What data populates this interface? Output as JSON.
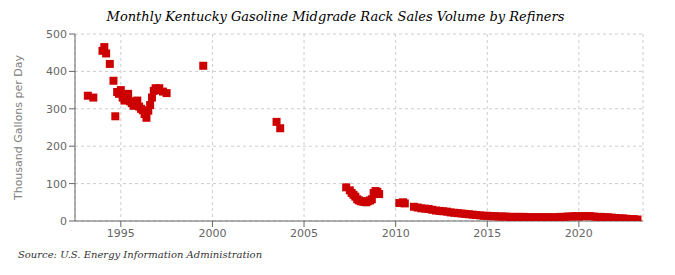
{
  "chart_data": {
    "type": "scatter",
    "title": "Monthly Kentucky Gasoline Midgrade Rack Sales Volume by Refiners",
    "ylabel": "Thousand Gallons per Day",
    "source": "Source: U.S. Energy Information Administration",
    "color": "#cc0000",
    "marker": "square",
    "grid": true,
    "xlim": [
      1992.5,
      2023.5
    ],
    "xticks": [
      1995,
      2000,
      2005,
      2010,
      2015,
      2020
    ],
    "ylim": [
      0,
      500
    ],
    "yticks": [
      0,
      100,
      200,
      300,
      400,
      500
    ],
    "x": [
      1993.2,
      1993.5,
      1994.0,
      1994.1,
      1994.2,
      1994.4,
      1994.6,
      1994.7,
      1994.8,
      1994.9,
      1995.0,
      1995.1,
      1995.2,
      1995.3,
      1995.4,
      1995.5,
      1995.6,
      1995.7,
      1995.8,
      1995.9,
      1996.0,
      1996.1,
      1996.2,
      1996.3,
      1996.4,
      1996.5,
      1996.6,
      1996.7,
      1996.8,
      1996.9,
      1997.0,
      1997.1,
      1997.3,
      1997.5,
      1999.5,
      2003.5,
      2003.7,
      2007.3,
      2007.5,
      2007.6,
      2007.7,
      2007.8,
      2007.9,
      2008.0,
      2008.1,
      2008.2,
      2008.3,
      2008.4,
      2008.5,
      2008.6,
      2008.7,
      2008.8,
      2008.9,
      2009.0,
      2009.1,
      2010.2,
      2010.4,
      2010.5,
      2011.0,
      2011.2,
      2011.4,
      2011.6,
      2011.8,
      2012.0,
      2012.2,
      2012.4,
      2012.6,
      2012.8,
      2013.0,
      2013.2,
      2013.4,
      2013.6,
      2013.8,
      2014.0,
      2014.2,
      2014.4,
      2014.6,
      2014.8,
      2015.0,
      2015.2,
      2015.4,
      2015.6,
      2015.8,
      2016.0,
      2016.2,
      2016.4,
      2016.6,
      2016.8,
      2017.0,
      2017.2,
      2017.4,
      2017.6,
      2017.8,
      2018.0,
      2018.2,
      2018.4,
      2018.6,
      2018.8,
      2019.0,
      2019.2,
      2019.4,
      2019.6,
      2019.8,
      2020.0,
      2020.2,
      2020.4,
      2020.6,
      2020.8,
      2021.0,
      2021.2,
      2021.4,
      2021.6,
      2021.8,
      2022.0,
      2022.2,
      2022.4,
      2022.6,
      2022.8,
      2023.0,
      2023.2
    ],
    "values": [
      335,
      330,
      455,
      465,
      448,
      420,
      375,
      280,
      345,
      340,
      350,
      330,
      322,
      325,
      340,
      320,
      315,
      308,
      312,
      322,
      306,
      300,
      296,
      286,
      276,
      295,
      310,
      330,
      348,
      355,
      350,
      355,
      346,
      342,
      415,
      265,
      248,
      90,
      82,
      75,
      70,
      65,
      58,
      55,
      53,
      52,
      51,
      50,
      53,
      55,
      58,
      75,
      80,
      78,
      72,
      48,
      50,
      47,
      38,
      36,
      34,
      33,
      32,
      30,
      28,
      27,
      26,
      25,
      23,
      22,
      21,
      20,
      19,
      18,
      17,
      16,
      15,
      14,
      14,
      13,
      13,
      12,
      12,
      12,
      11,
      11,
      11,
      11,
      11,
      10,
      10,
      10,
      10,
      10,
      10,
      10,
      10,
      10,
      11,
      11,
      12,
      12,
      13,
      12,
      13,
      13,
      13,
      12,
      11,
      11,
      10,
      10,
      9,
      8,
      7,
      7,
      6,
      5,
      5,
      4
    ]
  }
}
